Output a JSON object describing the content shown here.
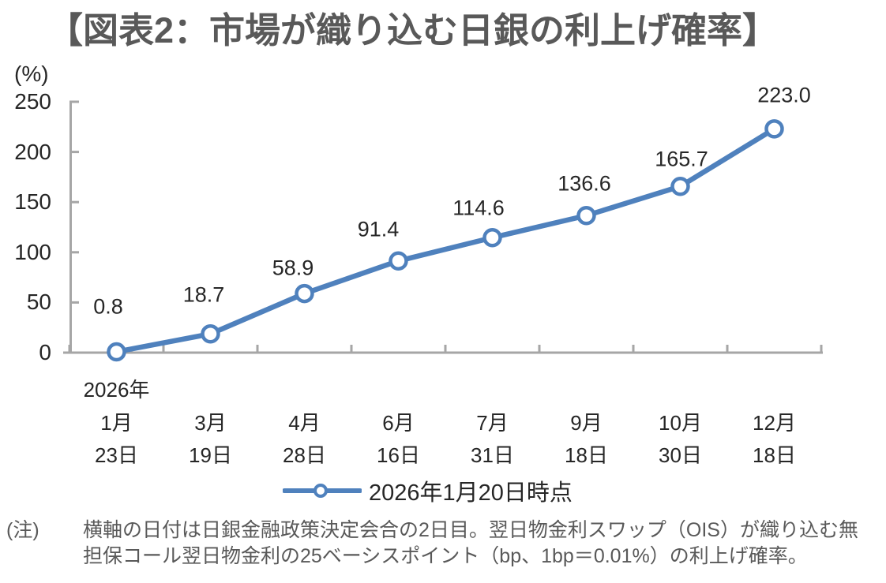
{
  "page": {
    "title": "【図表2：市場が織り込む日銀の利上げ確率】",
    "note": {
      "prefix": "(注)",
      "lines": [
        "横軸の日付は日銀金融政策決定会合の2日目。翌日物金利スワップ（OIS）が織り込む無",
        "担保コール翌日物金利の25ベーシスポイント（bp、1bp＝0.01%）の利上げ確率。"
      ]
    }
  },
  "chart_data": {
    "type": "line",
    "title": "【図表2：市場が織り込む日銀の利上げ確率】",
    "y_unit_label": "(%)",
    "ylim": [
      0,
      250
    ],
    "yticks": [
      0,
      50,
      100,
      150,
      200,
      250
    ],
    "grid": false,
    "x_axis_year_label": "2026年",
    "categories": [
      {
        "month": "1月",
        "day": "23日"
      },
      {
        "month": "3月",
        "day": "19日"
      },
      {
        "month": "4月",
        "day": "28日"
      },
      {
        "month": "6月",
        "day": "16日"
      },
      {
        "month": "7月",
        "day": "31日"
      },
      {
        "month": "9月",
        "day": "18日"
      },
      {
        "month": "10月",
        "day": "30日"
      },
      {
        "month": "12月",
        "day": "18日"
      }
    ],
    "series": [
      {
        "name": "2026年1月20日時点",
        "values": [
          0.8,
          18.7,
          58.9,
          91.4,
          114.6,
          136.6,
          165.7,
          223.0
        ],
        "data_labels": [
          "0.8",
          "18.7",
          "58.9",
          "91.4",
          "114.6",
          "136.6",
          "165.7",
          "223.0"
        ],
        "color": "#4F81BD",
        "marker": "open-circle"
      }
    ],
    "legend_position": "bottom"
  },
  "colors": {
    "title_text": "#595959",
    "axis": "#A6A6A6",
    "series_blue": "#4F81BD",
    "tick_text": "#262626",
    "note_text": "#595959"
  }
}
